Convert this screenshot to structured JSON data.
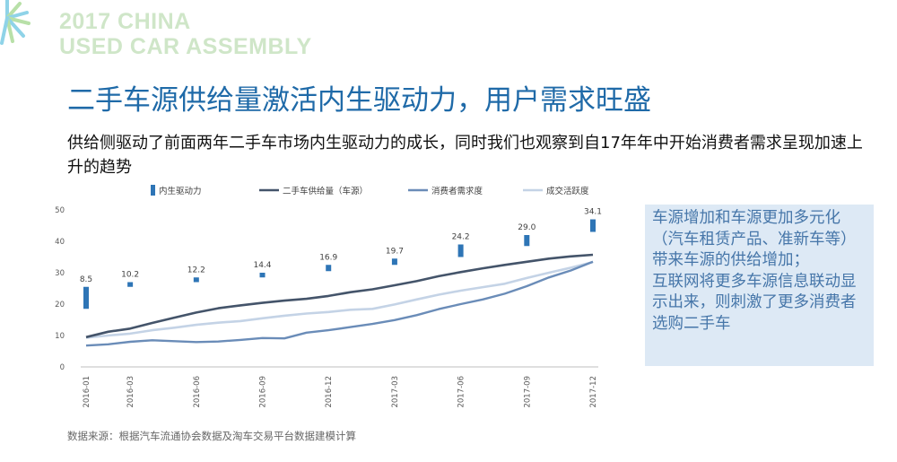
{
  "logo": {
    "line1": "2017 CHINA",
    "line2": "USED CAR ASSEMBLY"
  },
  "page_title": "二手车源供给量激活内生驱动力，用户需求旺盛",
  "subtitle": "供给侧驱动了前面两年二手车市场内生驱动力的成长，同时我们也观察到自17年年中开始消费者需求呈现加速上升的趋势",
  "side_note": {
    "paragraph1": "车源增加和车源更加多元化（汽车租赁产品、准新车等）带来车源的供给增加；",
    "paragraph2": "互联网将更多车源信息联动显示出来，则刺激了更多消费者选购二手车"
  },
  "source_note": "数据来源：根据汽车流通协会数据及淘车交易平台数据建模计算",
  "colors": {
    "title": "#1f6aa8",
    "bar": "#2e75b6",
    "supply": "#44546a",
    "demand": "#6a8cb8",
    "activity": "#c4d3e6",
    "note_bg": "#dde9f5"
  },
  "chart_data": {
    "type": "line",
    "title": "",
    "xlabel": "",
    "ylabel": "",
    "ylim": [
      0,
      50
    ],
    "yticks": [
      0,
      10,
      20,
      30,
      40,
      50
    ],
    "grid": false,
    "legend_position": "top",
    "x": [
      "2016-01",
      "2016-02",
      "2016-03",
      "2016-04",
      "2016-05",
      "2016-06",
      "2016-07",
      "2016-08",
      "2016-09",
      "2016-10",
      "2016-11",
      "2016-12",
      "2017-01",
      "2017-02",
      "2017-03",
      "2017-04",
      "2017-05",
      "2017-06",
      "2017-07",
      "2017-08",
      "2017-09",
      "2017-10",
      "2017-11",
      "2017-12"
    ],
    "xtick_labels": [
      "2016-01",
      "2016-03",
      "2016-06",
      "2016-09",
      "2016-12",
      "2017-03",
      "2017-06",
      "2017-09",
      "2017-12"
    ],
    "series": [
      {
        "name": "内生驱动力",
        "type": "bar",
        "bar_indices": [
          0,
          2,
          5,
          8,
          11,
          14,
          17,
          20,
          23
        ],
        "labels": [
          8.5,
          10.2,
          12.2,
          14.4,
          16.9,
          19.7,
          24.2,
          29.0,
          34.1
        ],
        "lows": [
          18.5,
          25.5,
          27.0,
          28.5,
          30.5,
          32.5,
          35.0,
          38.5,
          43.0
        ],
        "highs": [
          25.5,
          27.0,
          28.5,
          30.0,
          32.5,
          34.5,
          39.0,
          42.0,
          47.0
        ]
      },
      {
        "name": "二手车供给量（车源）",
        "type": "line",
        "values": [
          9.5,
          11.2,
          12.2,
          14.0,
          15.7,
          17.3,
          18.7,
          19.6,
          20.4,
          21.1,
          21.7,
          22.6,
          23.8,
          24.7,
          26.0,
          27.3,
          28.9,
          30.2,
          31.4,
          32.5,
          33.5,
          34.5,
          35.2,
          35.7
        ]
      },
      {
        "name": "消费者需求度",
        "type": "line",
        "values": [
          6.8,
          7.2,
          8.0,
          8.5,
          8.2,
          7.9,
          8.1,
          8.6,
          9.2,
          9.1,
          10.9,
          11.7,
          12.7,
          13.7,
          14.9,
          16.5,
          18.4,
          20.0,
          21.5,
          23.3,
          25.7,
          28.5,
          30.7,
          33.5
        ]
      },
      {
        "name": "成交活跃度",
        "type": "line",
        "values": [
          9.3,
          10.0,
          10.6,
          11.7,
          12.5,
          13.4,
          14.1,
          14.6,
          15.5,
          16.3,
          17.0,
          17.5,
          18.2,
          18.5,
          19.9,
          21.5,
          23.0,
          24.3,
          25.4,
          26.5,
          28.3,
          30.0,
          31.6,
          33.4
        ]
      }
    ]
  }
}
